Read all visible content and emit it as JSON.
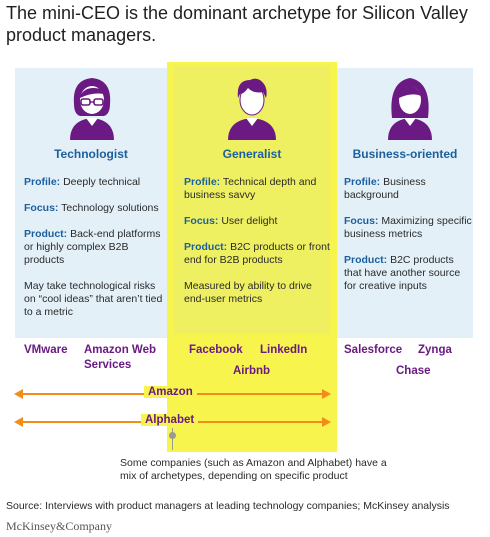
{
  "title": "The mini-CEO is the dominant archetype for Silicon Valley product managers.",
  "columns": [
    {
      "heading": "Technologist",
      "profile_label": "Profile:",
      "profile": "Deeply technical",
      "focus_label": "Focus:",
      "focus": "Technology solutions",
      "product_label": "Product:",
      "product": "Back-end platforms or highly complex B2B products",
      "note": "May take technological risks on “cool ideas” that aren’t tied to a metric",
      "companies": [
        "VMware",
        "Amazon Web Services"
      ]
    },
    {
      "heading": "Generalist",
      "profile_label": "Profile:",
      "profile": "Technical depth and business savvy",
      "focus_label": "Focus:",
      "focus": "User delight",
      "product_label": "Product:",
      "product": "B2C products or front end for B2B products",
      "note": "Measured by ability to drive end-user metrics",
      "companies": [
        "Facebook",
        "LinkedIn",
        "Airbnb"
      ]
    },
    {
      "heading": "Business-oriented",
      "profile_label": "Profile:",
      "profile": "Business background",
      "focus_label": "Focus:",
      "focus": "Maximizing specific business metrics",
      "product_label": "Product:",
      "product": "B2C products that have another source for creative inputs",
      "companies": [
        "Salesforce",
        "Zynga",
        "Chase"
      ]
    }
  ],
  "spans": [
    "Amazon",
    "Alphabet"
  ],
  "footnote": "Some companies (such as Amazon and Alphabet) have a mix of archetypes, depending on specific product",
  "source": "Source: Interviews with product managers at leading technology companies; McKinsey analysis",
  "brand": "McKinsey&Company",
  "colors": {
    "accent_blue": "#1b5f9d",
    "company_purple": "#6a1a82",
    "arrow_orange": "#f28c1c",
    "highlight_yellow": "#f7f44e"
  }
}
